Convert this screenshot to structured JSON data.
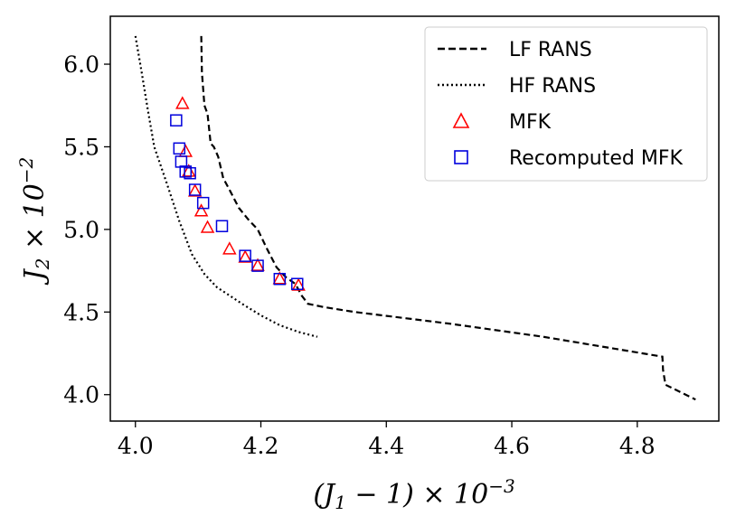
{
  "chart_data": {
    "type": "line",
    "title": "",
    "xlabel": "(J_1 - 1) × 10^-3",
    "ylabel": "J_2 × 10^-2",
    "xlim": [
      3.96,
      4.93
    ],
    "ylim": [
      3.84,
      6.29
    ],
    "grid": false,
    "legend_position": "top-right",
    "x_ticks": [
      "4.0",
      "4.2",
      "4.4",
      "4.6",
      "4.8"
    ],
    "y_ticks": [
      "4.0",
      "4.5",
      "5.0",
      "5.5",
      "6.0"
    ],
    "series": [
      {
        "name": "LF RANS",
        "style": "dashed",
        "color": "#000000",
        "x": [
          4.105,
          4.106,
          4.11,
          4.115,
          4.12,
          4.125,
          4.132,
          4.14,
          4.15,
          4.165,
          4.18,
          4.195,
          4.21,
          4.225,
          4.24,
          4.255,
          4.265,
          4.275,
          4.3,
          4.35,
          4.5,
          4.65,
          4.84,
          4.841,
          4.845,
          4.893
        ],
        "y": [
          6.17,
          5.95,
          5.75,
          5.7,
          5.52,
          5.5,
          5.44,
          5.31,
          5.24,
          5.13,
          5.06,
          5.0,
          4.88,
          4.77,
          4.71,
          4.67,
          4.6,
          4.55,
          4.53,
          4.5,
          4.43,
          4.35,
          4.23,
          4.15,
          4.06,
          3.97
        ]
      },
      {
        "name": "HF RANS",
        "style": "dotted",
        "color": "#000000",
        "x": [
          4.0,
          4.01,
          4.02,
          4.03,
          4.05,
          4.07,
          4.09,
          4.11,
          4.13,
          4.15,
          4.17,
          4.2,
          4.23,
          4.26,
          4.29
        ],
        "y": [
          6.17,
          5.95,
          5.72,
          5.5,
          5.28,
          5.05,
          4.85,
          4.73,
          4.65,
          4.6,
          4.55,
          4.48,
          4.42,
          4.38,
          4.35
        ]
      },
      {
        "name": "MFK",
        "marker": "triangle",
        "color": "#ff0000",
        "x": [
          4.075,
          4.08,
          4.085,
          4.095,
          4.105,
          4.115,
          4.15,
          4.175,
          4.195,
          4.23,
          4.26
        ],
        "y": [
          5.76,
          5.47,
          5.35,
          5.23,
          5.11,
          5.01,
          4.88,
          4.83,
          4.78,
          4.7,
          4.66
        ]
      },
      {
        "name": "Recomputed MFK",
        "marker": "square",
        "color": "#0000dd",
        "x": [
          4.065,
          4.07,
          4.073,
          4.08,
          4.087,
          4.095,
          4.108,
          4.138,
          4.175,
          4.195,
          4.23,
          4.258
        ],
        "y": [
          5.66,
          5.49,
          5.41,
          5.35,
          5.34,
          5.24,
          5.16,
          5.02,
          4.84,
          4.78,
          4.7,
          4.67
        ]
      }
    ]
  }
}
